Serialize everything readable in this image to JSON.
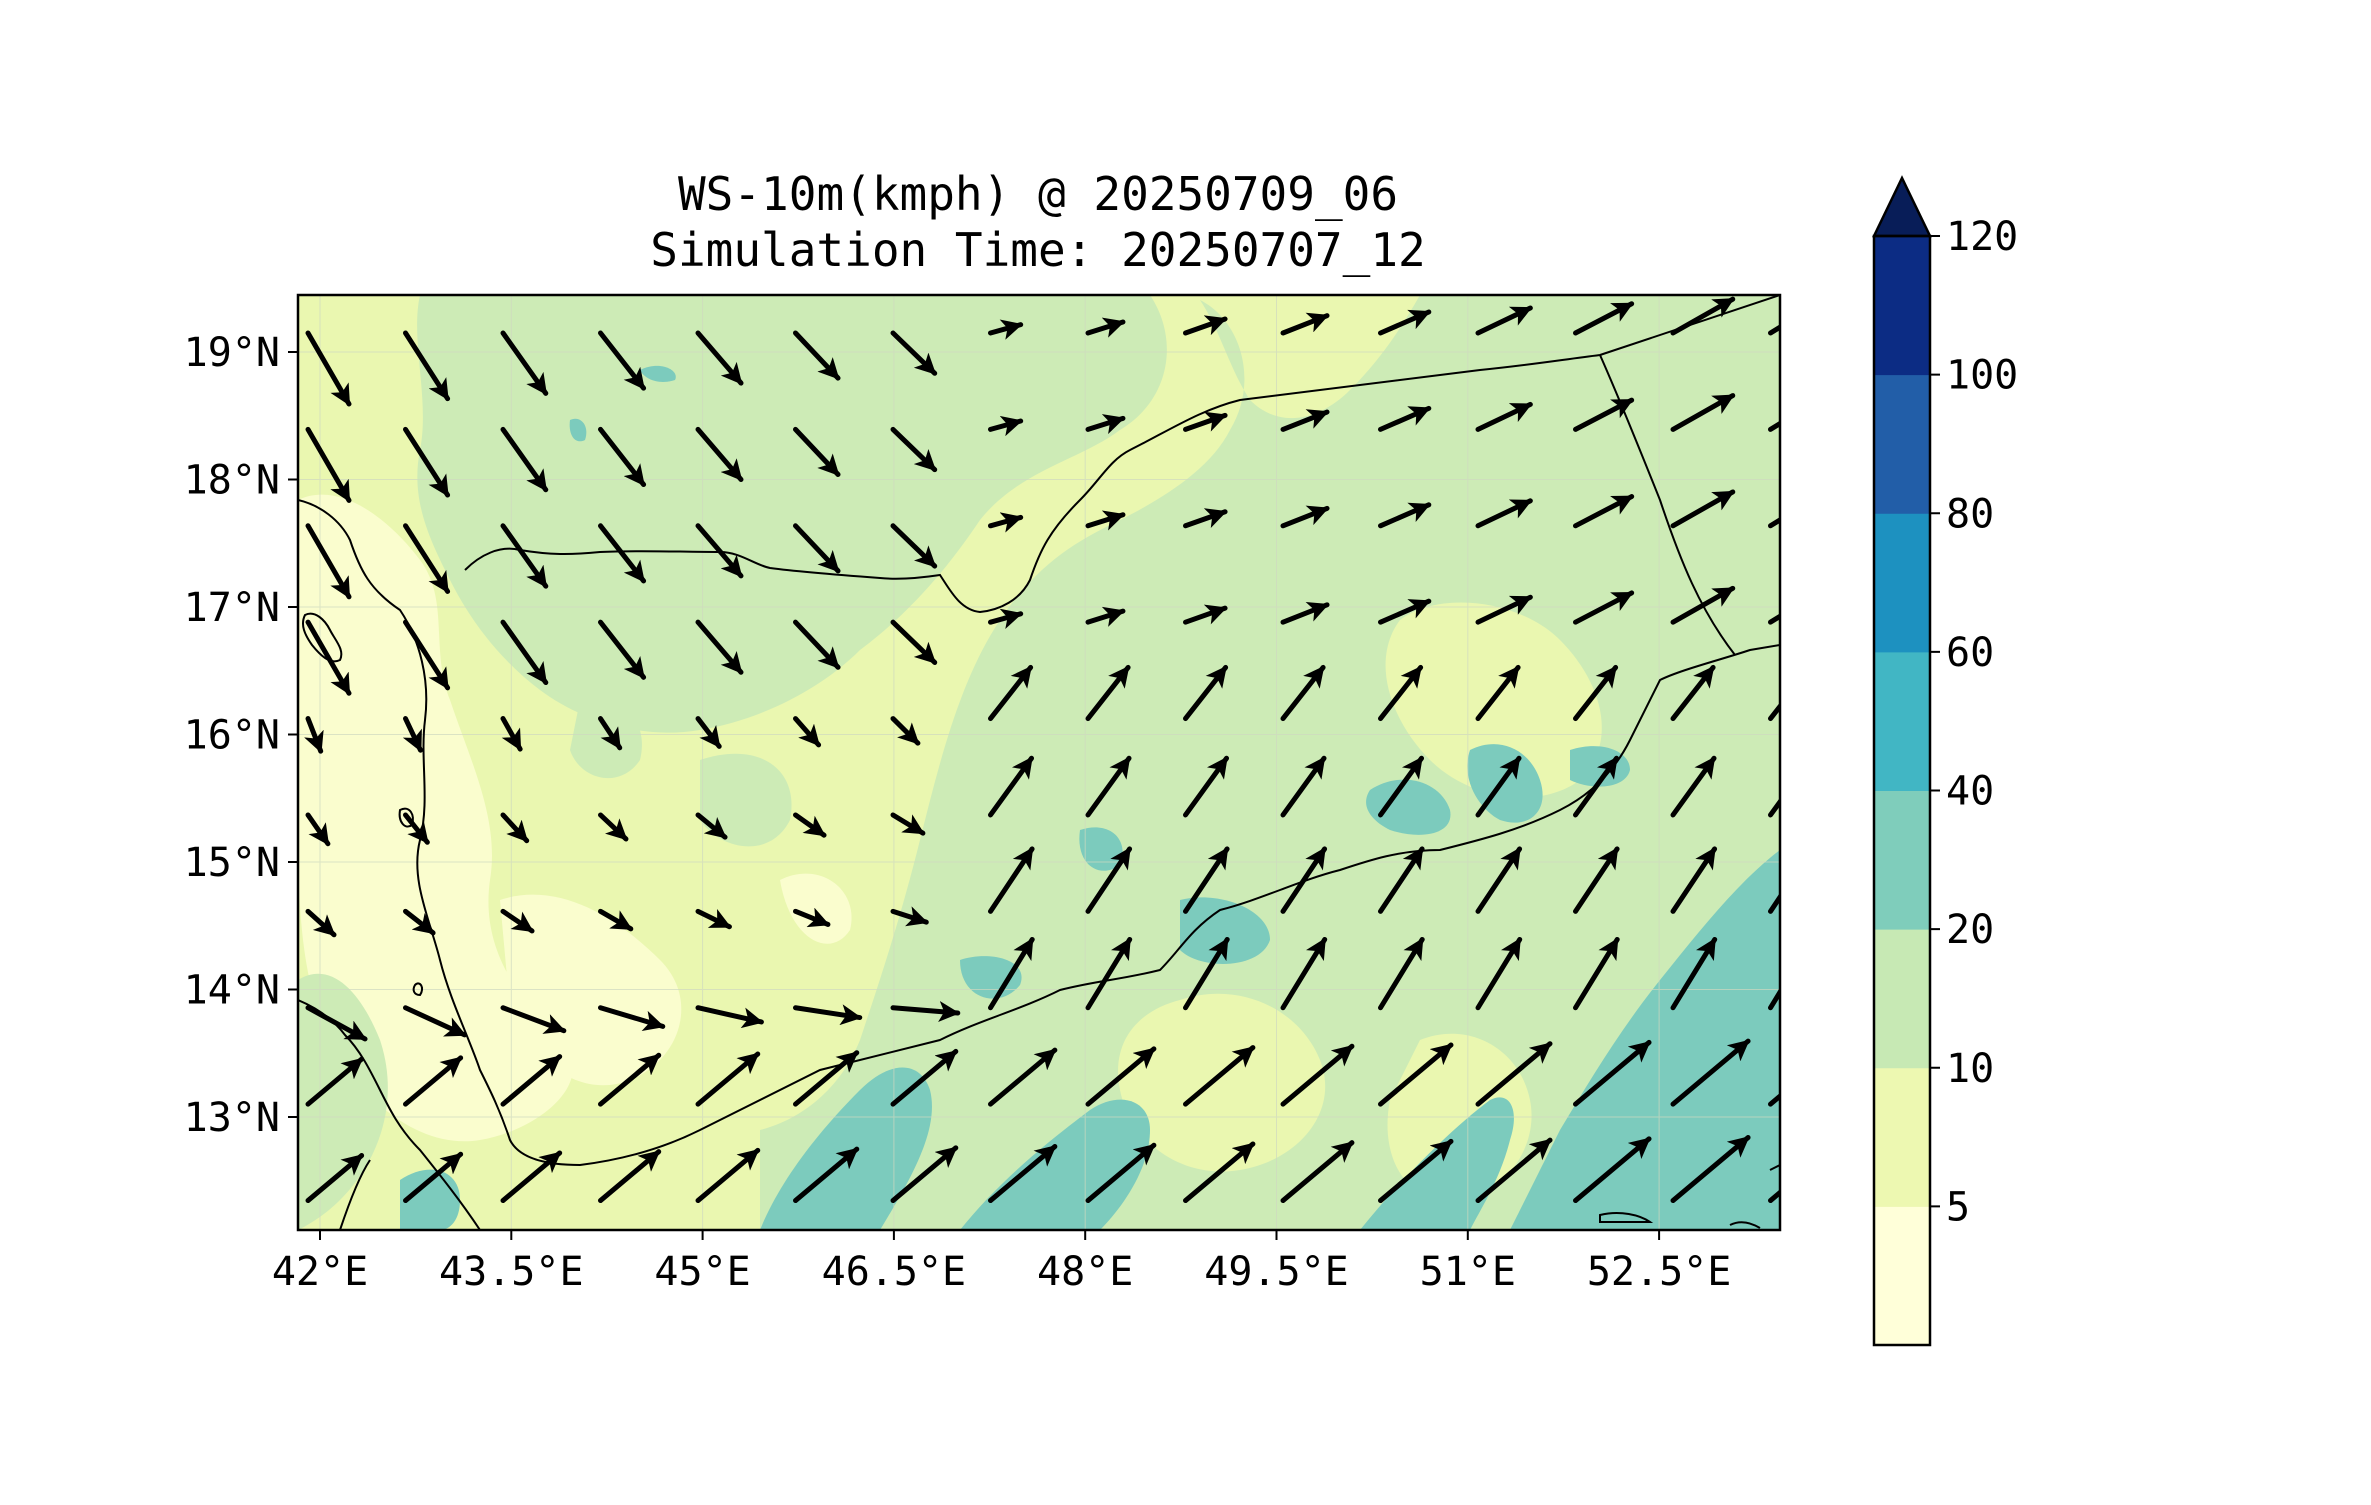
{
  "title_line1": "WS-10m(kmph) @ 20250709_06",
  "title_line2": "Simulation Time: 20250707_12",
  "lon_ticks": [
    "42°E",
    "43.5°E",
    "45°E",
    "46.5°E",
    "48°E",
    "49.5°E",
    "51°E",
    "52.5°E"
  ],
  "lat_ticks": [
    "19°N",
    "18°N",
    "17°N",
    "16°N",
    "15°N",
    "14°N",
    "13°N"
  ],
  "colorbar": {
    "ticks": [
      "120",
      "100",
      "80",
      "60",
      "40",
      "20",
      "10",
      "5"
    ],
    "colors": [
      "#ffffd9",
      "#edf8b1",
      "#c7e9b4",
      "#7fcdbb",
      "#41b6c4",
      "#1d91c0",
      "#225ea8",
      "#0c2c84"
    ],
    "extend_color": "#081d58"
  },
  "map_colors": {
    "lt10": "#fafdce",
    "c10_20": "#eaf7b0",
    "c20_40": "#cdebb6",
    "c40_60": "#7ccbbd"
  }
}
